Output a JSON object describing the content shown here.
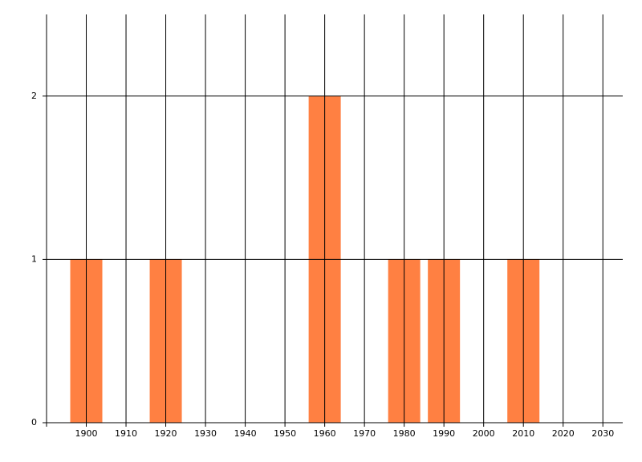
{
  "chart_data": {
    "type": "bar",
    "x": [
      1900,
      1920,
      1960,
      1980,
      1990,
      2010
    ],
    "values": [
      1,
      1,
      2,
      1,
      1,
      1
    ],
    "color": "#ff8042",
    "xlim": [
      1890,
      2035
    ],
    "xticks": [
      1900,
      1910,
      1920,
      1930,
      1940,
      1950,
      1960,
      1970,
      1980,
      1990,
      2000,
      2010,
      2020,
      2030
    ],
    "ylim": [
      0,
      2.5
    ],
    "yticks": [
      0,
      1,
      2
    ],
    "grid": true
  }
}
